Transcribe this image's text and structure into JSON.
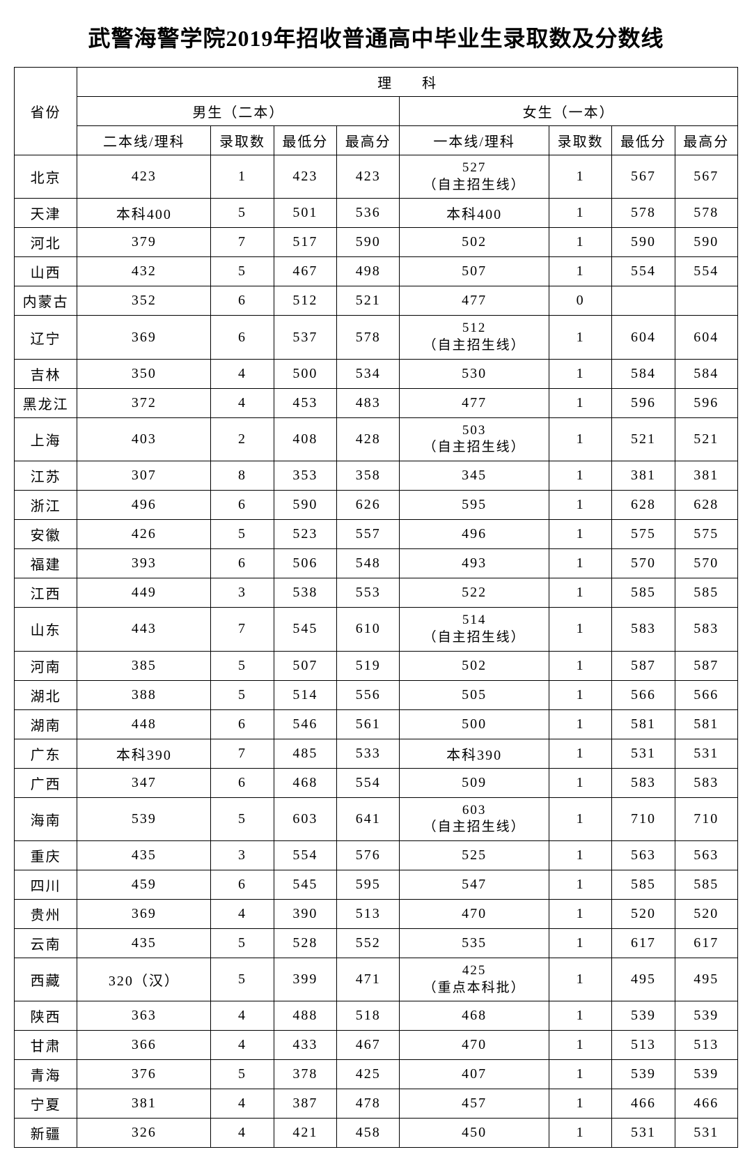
{
  "title": "武警海警学院2019年招收普通高中毕业生录取数及分数线",
  "headers": {
    "province": "省份",
    "science": "理　科",
    "male_group": "男生（二本）",
    "female_group": "女生（一本）",
    "male_line": "二本线/理科",
    "female_line": "一本线/理科",
    "admit_count": "录取数",
    "min_score": "最低分",
    "max_score": "最高分"
  },
  "rows": [
    {
      "prov": "北京",
      "m_line": "423",
      "m_cnt": "1",
      "m_min": "423",
      "m_max": "423",
      "f_line": "527\n（自主招生线）",
      "f_cnt": "1",
      "f_min": "567",
      "f_max": "567"
    },
    {
      "prov": "天津",
      "m_line": "本科400",
      "m_cnt": "5",
      "m_min": "501",
      "m_max": "536",
      "f_line": "本科400",
      "f_cnt": "1",
      "f_min": "578",
      "f_max": "578"
    },
    {
      "prov": "河北",
      "m_line": "379",
      "m_cnt": "7",
      "m_min": "517",
      "m_max": "590",
      "f_line": "502",
      "f_cnt": "1",
      "f_min": "590",
      "f_max": "590"
    },
    {
      "prov": "山西",
      "m_line": "432",
      "m_cnt": "5",
      "m_min": "467",
      "m_max": "498",
      "f_line": "507",
      "f_cnt": "1",
      "f_min": "554",
      "f_max": "554"
    },
    {
      "prov": "内蒙古",
      "m_line": "352",
      "m_cnt": "6",
      "m_min": "512",
      "m_max": "521",
      "f_line": "477",
      "f_cnt": "0",
      "f_min": "",
      "f_max": ""
    },
    {
      "prov": "辽宁",
      "m_line": "369",
      "m_cnt": "6",
      "m_min": "537",
      "m_max": "578",
      "f_line": "512\n（自主招生线）",
      "f_cnt": "1",
      "f_min": "604",
      "f_max": "604"
    },
    {
      "prov": "吉林",
      "m_line": "350",
      "m_cnt": "4",
      "m_min": "500",
      "m_max": "534",
      "f_line": "530",
      "f_cnt": "1",
      "f_min": "584",
      "f_max": "584"
    },
    {
      "prov": "黑龙江",
      "m_line": "372",
      "m_cnt": "4",
      "m_min": "453",
      "m_max": "483",
      "f_line": "477",
      "f_cnt": "1",
      "f_min": "596",
      "f_max": "596"
    },
    {
      "prov": "上海",
      "m_line": "403",
      "m_cnt": "2",
      "m_min": "408",
      "m_max": "428",
      "f_line": "503\n（自主招生线）",
      "f_cnt": "1",
      "f_min": "521",
      "f_max": "521"
    },
    {
      "prov": "江苏",
      "m_line": "307",
      "m_cnt": "8",
      "m_min": "353",
      "m_max": "358",
      "f_line": "345",
      "f_cnt": "1",
      "f_min": "381",
      "f_max": "381"
    },
    {
      "prov": "浙江",
      "m_line": "496",
      "m_cnt": "6",
      "m_min": "590",
      "m_max": "626",
      "f_line": "595",
      "f_cnt": "1",
      "f_min": "628",
      "f_max": "628"
    },
    {
      "prov": "安徽",
      "m_line": "426",
      "m_cnt": "5",
      "m_min": "523",
      "m_max": "557",
      "f_line": "496",
      "f_cnt": "1",
      "f_min": "575",
      "f_max": "575"
    },
    {
      "prov": "福建",
      "m_line": "393",
      "m_cnt": "6",
      "m_min": "506",
      "m_max": "548",
      "f_line": "493",
      "f_cnt": "1",
      "f_min": "570",
      "f_max": "570"
    },
    {
      "prov": "江西",
      "m_line": "449",
      "m_cnt": "3",
      "m_min": "538",
      "m_max": "553",
      "f_line": "522",
      "f_cnt": "1",
      "f_min": "585",
      "f_max": "585"
    },
    {
      "prov": "山东",
      "m_line": "443",
      "m_cnt": "7",
      "m_min": "545",
      "m_max": "610",
      "f_line": "514\n（自主招生线）",
      "f_cnt": "1",
      "f_min": "583",
      "f_max": "583"
    },
    {
      "prov": "河南",
      "m_line": "385",
      "m_cnt": "5",
      "m_min": "507",
      "m_max": "519",
      "f_line": "502",
      "f_cnt": "1",
      "f_min": "587",
      "f_max": "587"
    },
    {
      "prov": "湖北",
      "m_line": "388",
      "m_cnt": "5",
      "m_min": "514",
      "m_max": "556",
      "f_line": "505",
      "f_cnt": "1",
      "f_min": "566",
      "f_max": "566"
    },
    {
      "prov": "湖南",
      "m_line": "448",
      "m_cnt": "6",
      "m_min": "546",
      "m_max": "561",
      "f_line": "500",
      "f_cnt": "1",
      "f_min": "581",
      "f_max": "581"
    },
    {
      "prov": "广东",
      "m_line": "本科390",
      "m_cnt": "7",
      "m_min": "485",
      "m_max": "533",
      "f_line": "本科390",
      "f_cnt": "1",
      "f_min": "531",
      "f_max": "531"
    },
    {
      "prov": "广西",
      "m_line": "347",
      "m_cnt": "6",
      "m_min": "468",
      "m_max": "554",
      "f_line": "509",
      "f_cnt": "1",
      "f_min": "583",
      "f_max": "583"
    },
    {
      "prov": "海南",
      "m_line": "539",
      "m_cnt": "5",
      "m_min": "603",
      "m_max": "641",
      "f_line": "603\n（自主招生线）",
      "f_cnt": "1",
      "f_min": "710",
      "f_max": "710"
    },
    {
      "prov": "重庆",
      "m_line": "435",
      "m_cnt": "3",
      "m_min": "554",
      "m_max": "576",
      "f_line": "525",
      "f_cnt": "1",
      "f_min": "563",
      "f_max": "563"
    },
    {
      "prov": "四川",
      "m_line": "459",
      "m_cnt": "6",
      "m_min": "545",
      "m_max": "595",
      "f_line": "547",
      "f_cnt": "1",
      "f_min": "585",
      "f_max": "585"
    },
    {
      "prov": "贵州",
      "m_line": "369",
      "m_cnt": "4",
      "m_min": "390",
      "m_max": "513",
      "f_line": "470",
      "f_cnt": "1",
      "f_min": "520",
      "f_max": "520"
    },
    {
      "prov": "云南",
      "m_line": "435",
      "m_cnt": "5",
      "m_min": "528",
      "m_max": "552",
      "f_line": "535",
      "f_cnt": "1",
      "f_min": "617",
      "f_max": "617"
    },
    {
      "prov": "西藏",
      "m_line": "320（汉）",
      "m_cnt": "5",
      "m_min": "399",
      "m_max": "471",
      "f_line": "425\n（重点本科批）",
      "f_cnt": "1",
      "f_min": "495",
      "f_max": "495"
    },
    {
      "prov": "陕西",
      "m_line": "363",
      "m_cnt": "4",
      "m_min": "488",
      "m_max": "518",
      "f_line": "468",
      "f_cnt": "1",
      "f_min": "539",
      "f_max": "539"
    },
    {
      "prov": "甘肃",
      "m_line": "366",
      "m_cnt": "4",
      "m_min": "433",
      "m_max": "467",
      "f_line": "470",
      "f_cnt": "1",
      "f_min": "513",
      "f_max": "513"
    },
    {
      "prov": "青海",
      "m_line": "376",
      "m_cnt": "5",
      "m_min": "378",
      "m_max": "425",
      "f_line": "407",
      "f_cnt": "1",
      "f_min": "539",
      "f_max": "539"
    },
    {
      "prov": "宁夏",
      "m_line": "381",
      "m_cnt": "4",
      "m_min": "387",
      "m_max": "478",
      "f_line": "457",
      "f_cnt": "1",
      "f_min": "466",
      "f_max": "466"
    },
    {
      "prov": "新疆",
      "m_line": "326",
      "m_cnt": "4",
      "m_min": "421",
      "m_max": "458",
      "f_line": "450",
      "f_cnt": "1",
      "f_min": "531",
      "f_max": "531"
    }
  ]
}
